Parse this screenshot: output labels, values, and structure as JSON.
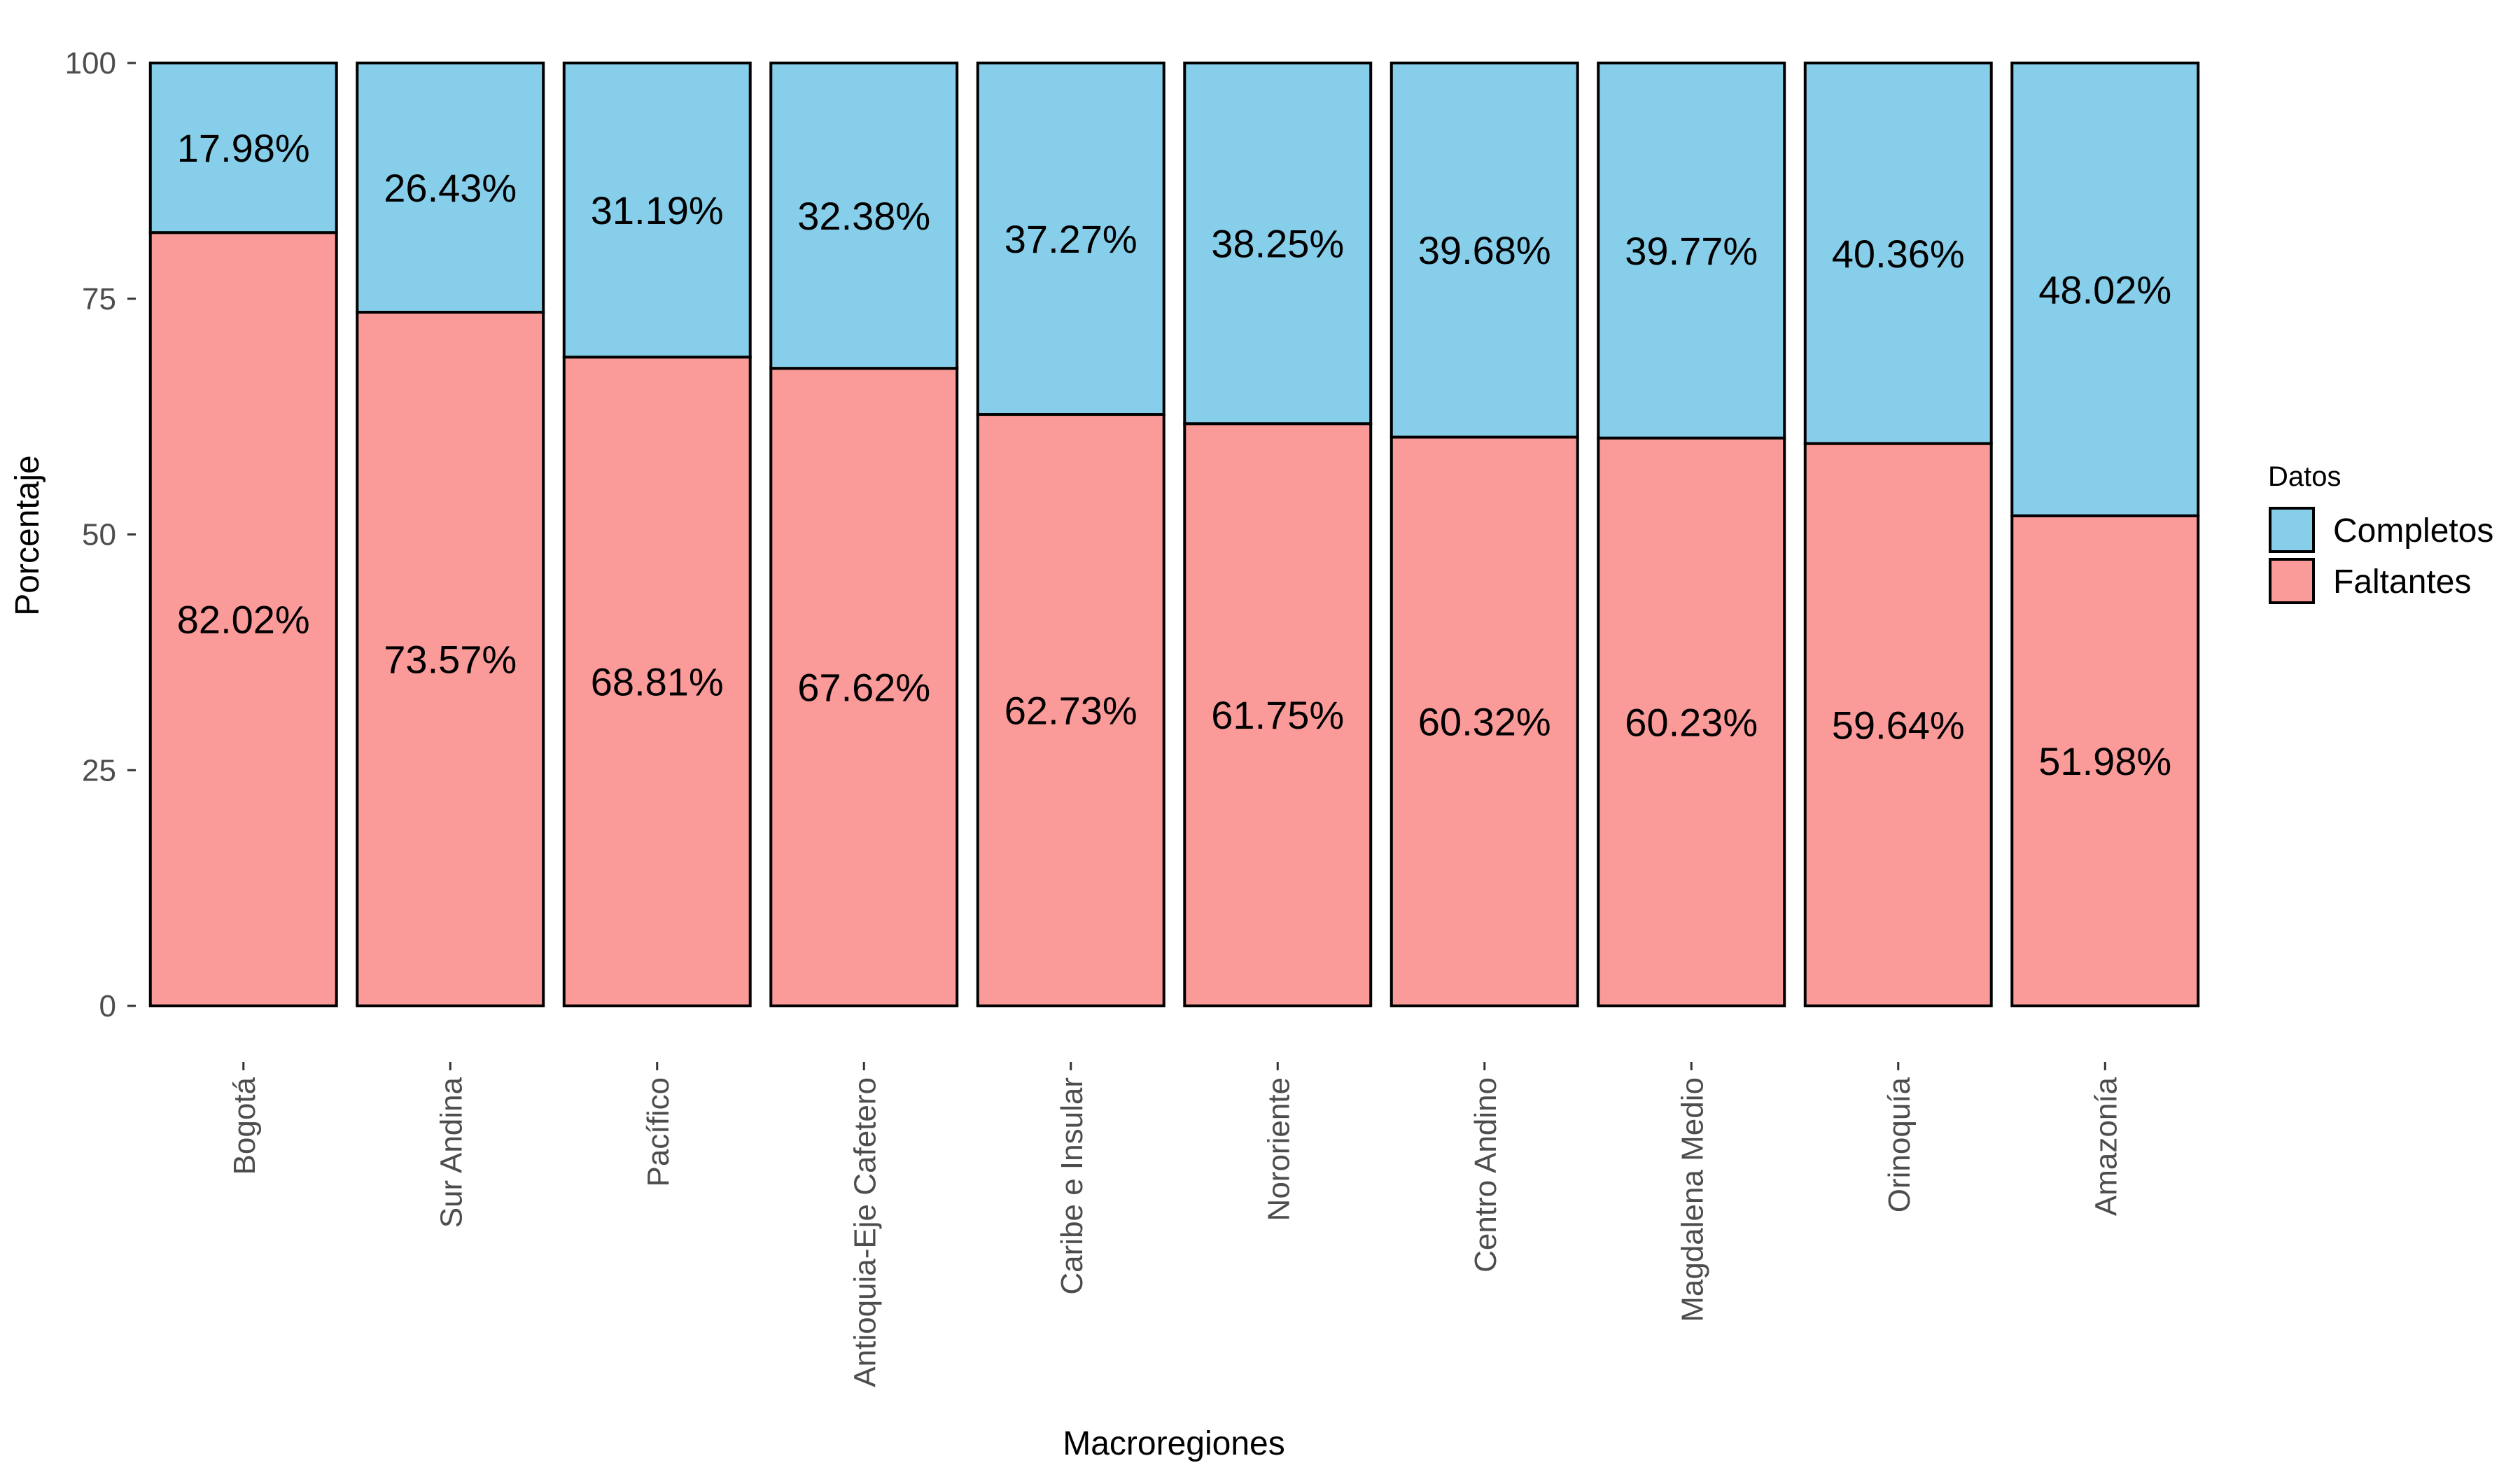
{
  "chart_data": {
    "type": "bar",
    "stacked": true,
    "orientation": "vertical",
    "categories": [
      "Bogotá",
      "Sur Andina",
      "Pacífico",
      "Antioquia-Eje Cafetero",
      "Caribe e Insular",
      "Nororiente",
      "Centro Andino",
      "Magdalena Medio",
      "Orinoquía",
      "Amazonía"
    ],
    "series": [
      {
        "name": "Faltantes",
        "color": "#FA9A99",
        "values": [
          82.02,
          73.57,
          68.81,
          67.62,
          62.73,
          61.75,
          60.32,
          60.23,
          59.64,
          51.98
        ],
        "labels": [
          "82.02%",
          "73.57%",
          "68.81%",
          "67.62%",
          "62.73%",
          "61.75%",
          "60.32%",
          "60.23%",
          "59.64%",
          "51.98%"
        ]
      },
      {
        "name": "Completos",
        "color": "#87CEEA",
        "values": [
          17.98,
          26.43,
          31.19,
          32.38,
          37.27,
          38.25,
          39.68,
          39.77,
          40.36,
          48.02
        ],
        "labels": [
          "17.98%",
          "26.43%",
          "31.19%",
          "32.38%",
          "37.27%",
          "38.25%",
          "39.68%",
          "39.77%",
          "40.36%",
          "48.02%"
        ]
      }
    ],
    "xlabel": "Macroregiones",
    "ylabel": "Porcentaje",
    "ylim": [
      0,
      100
    ],
    "yticks": [
      0,
      25,
      50,
      75,
      100
    ],
    "grid": false,
    "legend": {
      "title": "Datos",
      "placement": "right",
      "entries": [
        "Completos",
        "Faltantes"
      ]
    }
  }
}
